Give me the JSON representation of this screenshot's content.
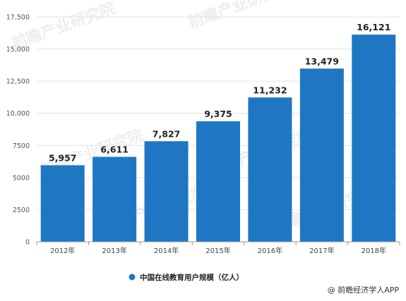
{
  "chart_data": {
    "type": "bar",
    "categories": [
      "2012年",
      "2013年",
      "2014年",
      "2015年",
      "2016年",
      "2017年",
      "2018年"
    ],
    "values": [
      5957,
      6611,
      7827,
      9375,
      11232,
      13479,
      16121
    ],
    "value_labels": [
      "5,957",
      "6,611",
      "7,827",
      "9,375",
      "11,232",
      "13,479",
      "16,121"
    ],
    "yticks": [
      0,
      2500,
      5000,
      7500,
      10000,
      12500,
      15000,
      17500
    ],
    "ytick_labels": [
      "0",
      "2500",
      "5000",
      "7500",
      "10,000",
      "12,500",
      "15,000",
      "17,500"
    ],
    "ylim": [
      0,
      17500
    ],
    "grid": true,
    "legend": {
      "position": "bottom",
      "label": "中国在线教育用户规模（亿人）"
    },
    "colors": {
      "bar": "#1f77c4",
      "grid": "#e3e3e3"
    }
  },
  "credit": "@ 前瞻经济学人APP",
  "watermark": "前瞻产业研究院"
}
